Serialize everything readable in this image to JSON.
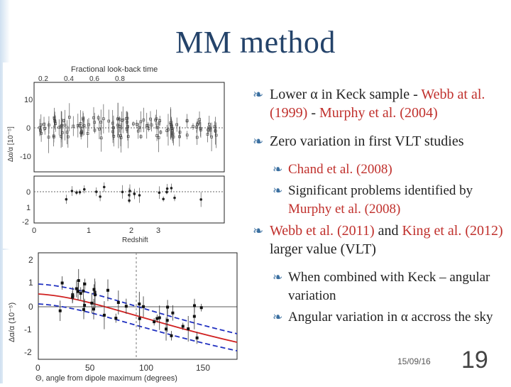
{
  "slide": {
    "title": "MM method",
    "date": "15/09/16",
    "number": "19"
  },
  "bullets": [
    {
      "level": 1,
      "parts": [
        {
          "text": "Lower ",
          "color": "default"
        },
        {
          "text": "α",
          "color": "default"
        },
        {
          "text": " in Keck sample - ",
          "color": "default"
        },
        {
          "text": "Webb at al. (1999)",
          "color": "red"
        },
        {
          "text": " - ",
          "color": "default"
        },
        {
          "text": "Murphy et al. (2004)",
          "color": "red"
        }
      ]
    },
    {
      "level": 1,
      "parts": [
        {
          "text": "Zero variation in first VLT studies",
          "color": "default"
        }
      ]
    },
    {
      "level": 2,
      "parts": [
        {
          "text": "Chand et al. (2008)",
          "color": "red"
        }
      ]
    },
    {
      "level": 2,
      "parts": [
        {
          "text": "Significant problems identified by ",
          "color": "default"
        },
        {
          "text": "Murphy et al. (2008)",
          "color": "red"
        }
      ]
    },
    {
      "level": 1,
      "parts": [
        {
          "text": "Webb et al. (2011)",
          "color": "red"
        },
        {
          "text": " and ",
          "color": "default"
        },
        {
          "text": "King et al. (2012)",
          "color": "red"
        },
        {
          "text": " larger value (VLT)",
          "color": "default"
        }
      ]
    },
    {
      "level": 2,
      "parts": [
        {
          "text": "When combined with Keck – angular variation",
          "color": "default"
        }
      ]
    },
    {
      "level": 2,
      "parts": [
        {
          "text": "Angular variation in α accross the sky",
          "color": "default"
        }
      ]
    }
  ],
  "figure_top": {
    "top_axis_label": "Fractional look-back time",
    "top_ticks": [
      "0.2",
      "0.4",
      "0.6",
      "0.8"
    ],
    "y_label": "Δα/α [10⁻⁵]",
    "x_label": "Redshift",
    "x_ticks": [
      "0",
      "1",
      "2",
      "3"
    ],
    "upper_y_ticks": [
      "10",
      "0",
      "-10"
    ],
    "lower_y_ticks": [
      "0",
      "1",
      "-2"
    ]
  },
  "figure_bottom": {
    "y_label": "Δα/α (10⁻⁵)",
    "x_label": "Θ, angle from dipole maximum (degrees)",
    "x_ticks": [
      "0",
      "50",
      "100",
      "150"
    ],
    "y_ticks": [
      "2",
      "1",
      "0",
      "-1",
      "-2"
    ],
    "colors": {
      "fit": "#d02020",
      "band": "#2030c0"
    }
  }
}
